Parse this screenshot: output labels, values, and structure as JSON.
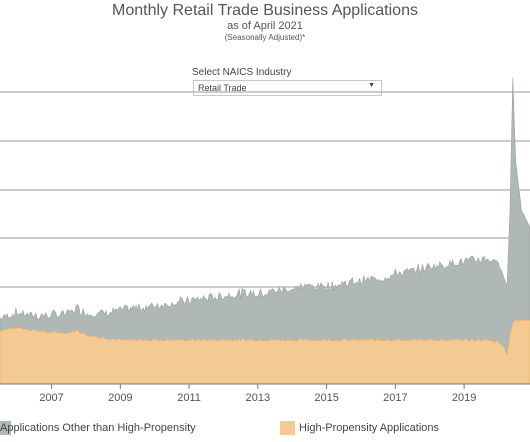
{
  "header": {
    "title": "Monthly Retail Trade Business Applications",
    "subtitle": "as of April 2021",
    "note": "(Seasonally Adjusted)*"
  },
  "filter": {
    "label": "Select NAICS Industry",
    "selected": "Retail Trade"
  },
  "chart_data": {
    "type": "area",
    "stacked": true,
    "grid": true,
    "x_start": "2005-07",
    "x_end": "2020-12",
    "xticks": [
      "2007",
      "2009",
      "2011",
      "2013",
      "2015",
      "2017",
      "2019"
    ],
    "x": [
      "2005-07",
      "2006-01",
      "2006-07",
      "2007-01",
      "2007-07",
      "2007-10",
      "2008-01",
      "2008-07",
      "2009-01",
      "2009-07",
      "2010-01",
      "2010-07",
      "2011-01",
      "2011-07",
      "2012-01",
      "2012-07",
      "2013-01",
      "2013-07",
      "2014-01",
      "2014-07",
      "2015-01",
      "2015-07",
      "2016-01",
      "2016-07",
      "2017-01",
      "2017-07",
      "2018-01",
      "2018-07",
      "2019-01",
      "2019-07",
      "2020-01",
      "2020-03",
      "2020-04",
      "2020-05",
      "2020-06",
      "2020-07",
      "2020-09",
      "2020-12"
    ],
    "series": [
      {
        "name": "High-Propensity Applications",
        "color": "#f5c992",
        "values": [
          0.22,
          0.23,
          0.22,
          0.21,
          0.21,
          0.22,
          0.2,
          0.19,
          0.18,
          0.18,
          0.18,
          0.18,
          0.18,
          0.18,
          0.18,
          0.18,
          0.18,
          0.18,
          0.18,
          0.18,
          0.18,
          0.18,
          0.18,
          0.18,
          0.18,
          0.18,
          0.18,
          0.18,
          0.18,
          0.18,
          0.17,
          0.15,
          0.12,
          0.2,
          0.25,
          0.26,
          0.26,
          0.26
        ]
      },
      {
        "name": "Applications Other than High-Propensity",
        "color": "#b0b8b6",
        "values": [
          0.05,
          0.06,
          0.06,
          0.07,
          0.08,
          0.09,
          0.09,
          0.1,
          0.12,
          0.13,
          0.14,
          0.15,
          0.16,
          0.17,
          0.18,
          0.19,
          0.19,
          0.2,
          0.21,
          0.22,
          0.22,
          0.23,
          0.24,
          0.25,
          0.27,
          0.28,
          0.3,
          0.31,
          0.32,
          0.33,
          0.33,
          0.28,
          0.28,
          0.5,
          1.0,
          0.65,
          0.45,
          0.38
        ]
      }
    ]
  },
  "legend": [
    {
      "label": "Applications Other than High-Propensity",
      "color": "#b0b8b6"
    },
    {
      "label": "High-Propensity Applications",
      "color": "#f5c992"
    }
  ]
}
